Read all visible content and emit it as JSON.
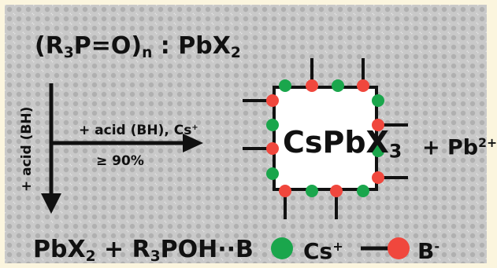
{
  "background_color": "#c7c7c7",
  "red": "#f0473d",
  "green": "#1aa64c",
  "labels": {
    "title_main": "(R",
    "title_sub1": "3",
    "title_mid": "P=O)",
    "title_sub2": "n",
    "title_tail": " : PbX",
    "title_sub3": "2",
    "acid_cs_main": "+ acid (BH), Cs",
    "acid_cs_sup": "+",
    "yield": "≥ 90%",
    "acid_vertical": "+ acid (BH)",
    "product_main": "CsPbX",
    "product_sub": "3",
    "pb_main": "+ Pb",
    "pb_sup": "2+",
    "bottom_a": "PbX",
    "bottom_sub1": "2",
    "bottom_b": " + R",
    "bottom_sub2": "3",
    "bottom_c": "POH··B",
    "legend_cs": "Cs",
    "legend_cs_sup": "+",
    "legend_b": "B",
    "legend_b_sup": "-"
  }
}
